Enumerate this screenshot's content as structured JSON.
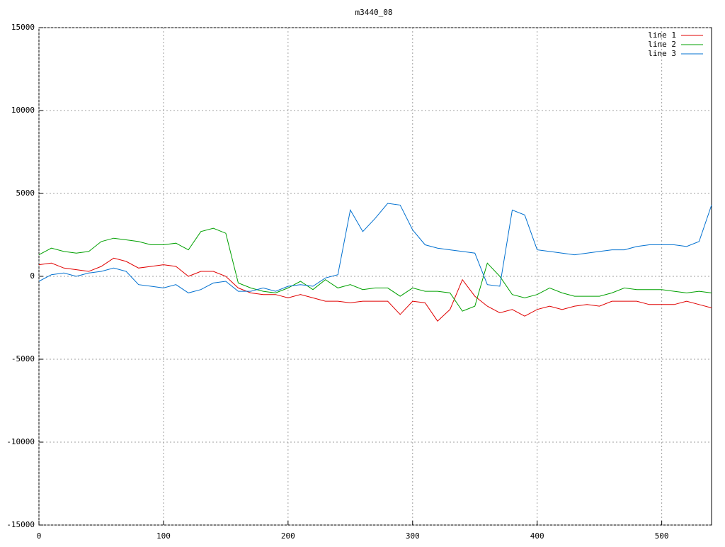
{
  "chart_data": {
    "type": "line",
    "title": "m3440_08",
    "x": [
      0,
      10,
      20,
      30,
      40,
      50,
      60,
      70,
      80,
      90,
      100,
      110,
      120,
      130,
      140,
      150,
      160,
      170,
      180,
      190,
      200,
      210,
      220,
      230,
      240,
      250,
      260,
      270,
      280,
      290,
      300,
      310,
      320,
      330,
      340,
      350,
      360,
      370,
      380,
      390,
      400,
      410,
      420,
      430,
      440,
      450,
      460,
      470,
      480,
      490,
      500,
      510,
      520,
      530,
      540
    ],
    "series": [
      {
        "name": "line 1",
        "color": "#e00000",
        "values": [
          700,
          800,
          500,
          400,
          300,
          600,
          1100,
          900,
          500,
          600,
          700,
          600,
          0,
          300,
          300,
          0,
          -700,
          -1000,
          -1100,
          -1100,
          -1300,
          -1100,
          -1300,
          -1500,
          -1500,
          -1600,
          -1500,
          -1500,
          -1500,
          -2300,
          -1500,
          -1600,
          -2700,
          -2000,
          -200,
          -1200,
          -1800,
          -2200,
          -2000,
          -2400,
          -2000,
          -1800,
          -2000,
          -1800,
          -1700,
          -1800,
          -1500,
          -1500,
          -1500,
          -1700,
          -1700,
          -1700,
          -1500,
          -1700,
          -1900
        ]
      },
      {
        "name": "line 2",
        "color": "#00a000",
        "values": [
          1300,
          1700,
          1500,
          1400,
          1500,
          2100,
          2300,
          2200,
          2100,
          1900,
          1900,
          2000,
          1600,
          2700,
          2900,
          2600,
          -400,
          -700,
          -900,
          -1000,
          -700,
          -300,
          -800,
          -200,
          -700,
          -500,
          -800,
          -700,
          -700,
          -1200,
          -700,
          -900,
          -900,
          -1000,
          -2100,
          -1800,
          800,
          0,
          -1100,
          -1300,
          -1100,
          -700,
          -1000,
          -1200,
          -1200,
          -1200,
          -1000,
          -700,
          -800,
          -800,
          -800,
          -900,
          -1000,
          -900,
          -1000
        ]
      },
      {
        "name": "line 3",
        "color": "#0070d0",
        "values": [
          -300,
          100,
          200,
          0,
          200,
          300,
          500,
          300,
          -500,
          -600,
          -700,
          -500,
          -1000,
          -800,
          -400,
          -300,
          -900,
          -900,
          -700,
          -900,
          -600,
          -500,
          -600,
          -100,
          100,
          4000,
          2700,
          3500,
          4400,
          4300,
          2800,
          1900,
          1700,
          1600,
          1500,
          1400,
          -500,
          -600,
          4000,
          3700,
          1600,
          1500,
          1400,
          1300,
          1400,
          1500,
          1600,
          1600,
          1800,
          1900,
          1900,
          1900,
          1800,
          2100,
          4300
        ]
      }
    ],
    "xlim": [
      0,
      540
    ],
    "xticks": [
      0,
      100,
      200,
      300,
      400,
      500
    ],
    "ylim": [
      -15000,
      15000
    ],
    "yticks": [
      -15000,
      -10000,
      -5000,
      0,
      5000,
      10000,
      15000
    ],
    "grid": true,
    "legend": "top-right"
  }
}
